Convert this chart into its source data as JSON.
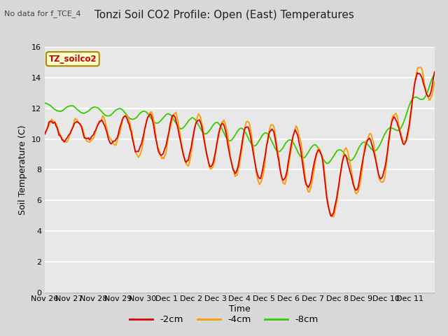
{
  "title": "Tonzi Soil CO2 Profile: Open (East) Temperatures",
  "subtitle": "No data for f_TCE_4",
  "ylabel": "Soil Temperature (C)",
  "xlabel": "Time",
  "box_label": "TZ_soilco2",
  "ylim": [
    0,
    16
  ],
  "yticks": [
    0,
    2,
    4,
    6,
    8,
    10,
    12,
    14,
    16
  ],
  "legend_labels": [
    "-2cm",
    "-4cm",
    "-8cm"
  ],
  "line_colors": [
    "#dd0000",
    "#ff9900",
    "#33cc00"
  ],
  "xtick_labels": [
    "Nov 26",
    "Nov 27",
    "Nov 28",
    "Nov 29",
    "Nov 30",
    "Dec 1",
    "Dec 2",
    "Dec 3",
    "Dec 4",
    "Dec 5",
    "Dec 6",
    "Dec 7",
    "Dec 8",
    "Dec 9",
    "Dec 10",
    "Dec 11"
  ],
  "background_color": "#e8e8e8",
  "plot_bg_color": "#e8e8e8",
  "grid_color": "#ffffff",
  "title_fontsize": 11,
  "axis_fontsize": 9,
  "tick_fontsize": 8
}
